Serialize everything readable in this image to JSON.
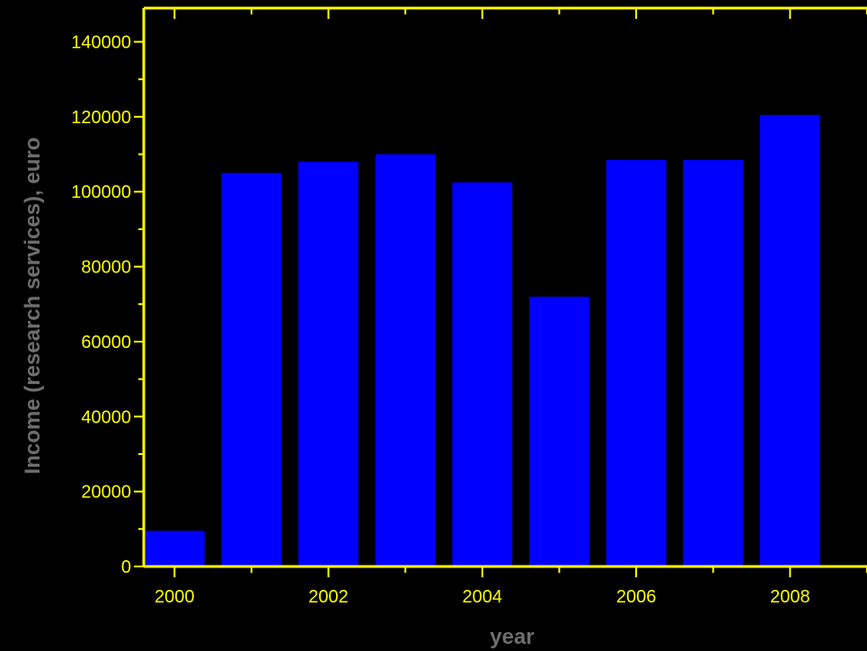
{
  "chart_data": {
    "type": "bar",
    "title": "",
    "xlabel": "year",
    "ylabel": "Income (research services), euro",
    "categories": [
      "2000",
      "2001",
      "2002",
      "2003",
      "2004",
      "2005",
      "2006",
      "2007",
      "2008"
    ],
    "values": [
      9500,
      105000,
      108000,
      110000,
      102500,
      72000,
      108500,
      108500,
      120500
    ],
    "xlim": [
      1999.6,
      2009.0
    ],
    "ylim": [
      0,
      149000
    ],
    "x_tick_labels": [
      "2000",
      "2002",
      "2004",
      "2006",
      "2008"
    ],
    "y_tick_labels": [
      "0",
      "20000",
      "40000",
      "60000",
      "80000",
      "100000",
      "120000",
      "140000"
    ],
    "grid": false,
    "legend": "none",
    "colors": {
      "background": "#000000",
      "bar": "#0000ff",
      "axis": "#ffff00",
      "tick_text": "#ffff00",
      "axis_title": "#6e6e6e"
    }
  }
}
